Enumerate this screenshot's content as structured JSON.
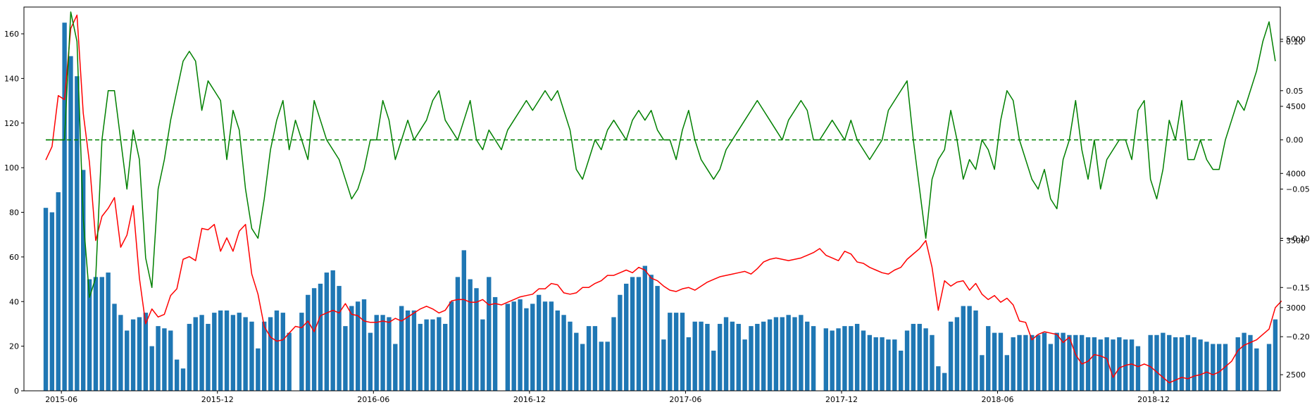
{
  "chart_data": {
    "type": "bar+line",
    "title": "",
    "xlabel": "",
    "ylabel": "",
    "grid": false,
    "x_tick_labels": [
      "2015-06",
      "2015-12",
      "2016-06",
      "2016-12",
      "2017-06",
      "2017-12",
      "2018-06",
      "2018-12"
    ],
    "x_tick_positions": [
      2.5,
      27.5,
      52.5,
      77.5,
      102.5,
      127.5,
      152.5,
      177.5
    ],
    "x_range": [
      -3.5,
      197.8
    ],
    "axes": {
      "left": {
        "ylim": [
          0,
          172
        ],
        "ticks": [
          0,
          20,
          40,
          60,
          80,
          100,
          120,
          140,
          160
        ]
      },
      "right_price": {
        "ylim": [
          2380,
          5240
        ],
        "ticks": [
          2500,
          3000,
          3500,
          4000,
          4500,
          5000
        ]
      },
      "right_return": {
        "ylim": [
          -0.255,
          0.135
        ],
        "ticks": [
          -0.2,
          -0.15,
          -0.1,
          -0.05,
          0.0,
          0.05,
          0.1
        ],
        "tick_labels": [
          "−0.20",
          "−0.15",
          "−0.10",
          "−0.05",
          "0.00",
          "0.05",
          "0.10"
        ]
      }
    },
    "series": [
      {
        "kind": "bar",
        "axis": "left",
        "color": "#1f77b4",
        "values": [
          82,
          80,
          89,
          165,
          150,
          141,
          99,
          50,
          51,
          51,
          53,
          39,
          34,
          27,
          32,
          33,
          35,
          20,
          29,
          28,
          27,
          14,
          10,
          30,
          33,
          34,
          30,
          35,
          36,
          36,
          34,
          35,
          33,
          31,
          19,
          31,
          33,
          36,
          35,
          26,
          0,
          35,
          43,
          46,
          48,
          53,
          54,
          47,
          29,
          38,
          40,
          41,
          26,
          34,
          34,
          33,
          21,
          38,
          36,
          36,
          30,
          32,
          32,
          33,
          30,
          40,
          51,
          63,
          50,
          46,
          32,
          51,
          42,
          0,
          39,
          40,
          41,
          37,
          39,
          43,
          40,
          40,
          36,
          34,
          31,
          26,
          21,
          29,
          29,
          22,
          22,
          33,
          43,
          48,
          51,
          51,
          56,
          52,
          47,
          23,
          35,
          35,
          35,
          24,
          31,
          31,
          30,
          18,
          30,
          33,
          31,
          30,
          23,
          29,
          30,
          31,
          32,
          33,
          33,
          34,
          33,
          34,
          31,
          29,
          0,
          28,
          27,
          28,
          29,
          29,
          30,
          27,
          25,
          24,
          24,
          23,
          23,
          18,
          27,
          30,
          30,
          28,
          25,
          11,
          8,
          31,
          33,
          38,
          38,
          36,
          16,
          29,
          26,
          26,
          16,
          24,
          25,
          25,
          25,
          25,
          26,
          21,
          26,
          26,
          25,
          25,
          25,
          24,
          24,
          23,
          24,
          23,
          24,
          23,
          23,
          20,
          0,
          25,
          25,
          26,
          25,
          24,
          24,
          25,
          24,
          23,
          22,
          21,
          21,
          21,
          0,
          24,
          26,
          25,
          19,
          0,
          21,
          32
        ],
        "x_start": 0
      },
      {
        "kind": "line",
        "name": "",
        "axis": "right_price",
        "color": "#ff0000",
        "values": [
          4100,
          4200,
          4580,
          4550,
          5080,
          5180,
          4450,
          4080,
          3500,
          3680,
          3740,
          3820,
          3450,
          3540,
          3760,
          3220,
          2880,
          2990,
          2930,
          2950,
          3090,
          3140,
          3360,
          3380,
          3350,
          3590,
          3580,
          3620,
          3420,
          3520,
          3420,
          3570,
          3620,
          3250,
          3100,
          2860,
          2780,
          2750,
          2760,
          2810,
          2860,
          2850,
          2900,
          2820,
          2940,
          2960,
          2980,
          2960,
          3030,
          2950,
          2940,
          2900,
          2890,
          2890,
          2900,
          2890,
          2920,
          2900,
          2930,
          2960,
          2990,
          3010,
          2990,
          2960,
          2980,
          3050,
          3060,
          3060,
          3040,
          3040,
          3060,
          3020,
          3030,
          3020,
          3040,
          3060,
          3080,
          3090,
          3100,
          3140,
          3140,
          3180,
          3170,
          3110,
          3100,
          3110,
          3150,
          3150,
          3180,
          3200,
          3240,
          3240,
          3260,
          3280,
          3260,
          3300,
          3280,
          3220,
          3200,
          3160,
          3130,
          3120,
          3140,
          3150,
          3130,
          3160,
          3190,
          3210,
          3230,
          3240,
          3250,
          3260,
          3270,
          3250,
          3290,
          3340,
          3360,
          3370,
          3360,
          3350,
          3360,
          3370,
          3390,
          3410,
          3440,
          3390,
          3370,
          3350,
          3420,
          3400,
          3340,
          3330,
          3300,
          3280,
          3260,
          3250,
          3280,
          3300,
          3360,
          3400,
          3440,
          3500,
          3300,
          2980,
          3200,
          3160,
          3190,
          3200,
          3130,
          3180,
          3100,
          3060,
          3090,
          3040,
          3070,
          3020,
          2900,
          2890,
          2760,
          2800,
          2820,
          2810,
          2800,
          2740,
          2780,
          2650,
          2580,
          2600,
          2650,
          2640,
          2620,
          2480,
          2550,
          2570,
          2580,
          2560,
          2580,
          2560,
          2520,
          2480,
          2440,
          2460,
          2480,
          2470,
          2490,
          2500,
          2520,
          2500,
          2520,
          2560,
          2600,
          2680,
          2720,
          2740,
          2760,
          2800,
          2840,
          3000,
          3050
        ],
        "x_start": 0
      },
      {
        "kind": "line",
        "name": "",
        "axis": "right_return",
        "color": "#008000",
        "values": [
          0.0,
          0.0,
          0.0,
          0.0,
          0.13,
          0.1,
          -0.08,
          -0.16,
          -0.14,
          0.0,
          0.05,
          0.05,
          0.0,
          -0.05,
          0.01,
          -0.02,
          -0.12,
          -0.15,
          -0.05,
          -0.02,
          0.02,
          0.05,
          0.08,
          0.09,
          0.08,
          0.03,
          0.06,
          0.05,
          0.04,
          -0.02,
          0.03,
          0.01,
          -0.05,
          -0.09,
          -0.1,
          -0.06,
          -0.01,
          0.02,
          0.04,
          -0.01,
          0.02,
          0.0,
          -0.02,
          0.04,
          0.02,
          0.0,
          -0.01,
          -0.02,
          -0.04,
          -0.06,
          -0.05,
          -0.03,
          0.0,
          0.0,
          0.04,
          0.02,
          -0.02,
          0.0,
          0.02,
          0.0,
          0.01,
          0.02,
          0.04,
          0.05,
          0.02,
          0.01,
          0.0,
          0.02,
          0.04,
          0.0,
          -0.01,
          0.01,
          0.0,
          -0.01,
          0.01,
          0.02,
          0.03,
          0.04,
          0.03,
          0.04,
          0.05,
          0.04,
          0.05,
          0.03,
          0.01,
          -0.03,
          -0.04,
          -0.02,
          0.0,
          -0.01,
          0.01,
          0.02,
          0.01,
          0.0,
          0.02,
          0.03,
          0.02,
          0.03,
          0.01,
          0.0,
          0.0,
          -0.02,
          0.01,
          0.03,
          0.0,
          -0.02,
          -0.03,
          -0.04,
          -0.03,
          -0.01,
          0.0,
          0.01,
          0.02,
          0.03,
          0.04,
          0.03,
          0.02,
          0.01,
          0.0,
          0.02,
          0.03,
          0.04,
          0.03,
          0.0,
          0.0,
          0.01,
          0.02,
          0.01,
          0.0,
          0.02,
          0.0,
          -0.01,
          -0.02,
          -0.01,
          0.0,
          0.03,
          0.04,
          0.05,
          0.06,
          0.0,
          -0.05,
          -0.1,
          -0.04,
          -0.02,
          -0.01,
          0.03,
          0.0,
          -0.04,
          -0.02,
          -0.03,
          0.0,
          -0.01,
          -0.03,
          0.02,
          0.05,
          0.04,
          0.0,
          -0.02,
          -0.04,
          -0.05,
          -0.03,
          -0.06,
          -0.07,
          -0.02,
          0.0,
          0.04,
          -0.01,
          -0.04,
          0.0,
          -0.05,
          -0.02,
          -0.01,
          0.0,
          0.0,
          -0.02,
          0.03,
          0.04,
          -0.04,
          -0.06,
          -0.03,
          0.02,
          0.0,
          0.04,
          -0.02,
          -0.02,
          0.0,
          -0.02,
          -0.03,
          -0.03,
          0.0,
          0.02,
          0.04,
          0.03,
          0.05,
          0.07,
          0.1,
          0.12,
          0.08
        ],
        "x_start": 0
      },
      {
        "kind": "hline",
        "axis": "right_return",
        "value": 0.0,
        "style": "dashed",
        "color": "#008000",
        "x_range": [
          0,
          187
        ]
      }
    ]
  }
}
